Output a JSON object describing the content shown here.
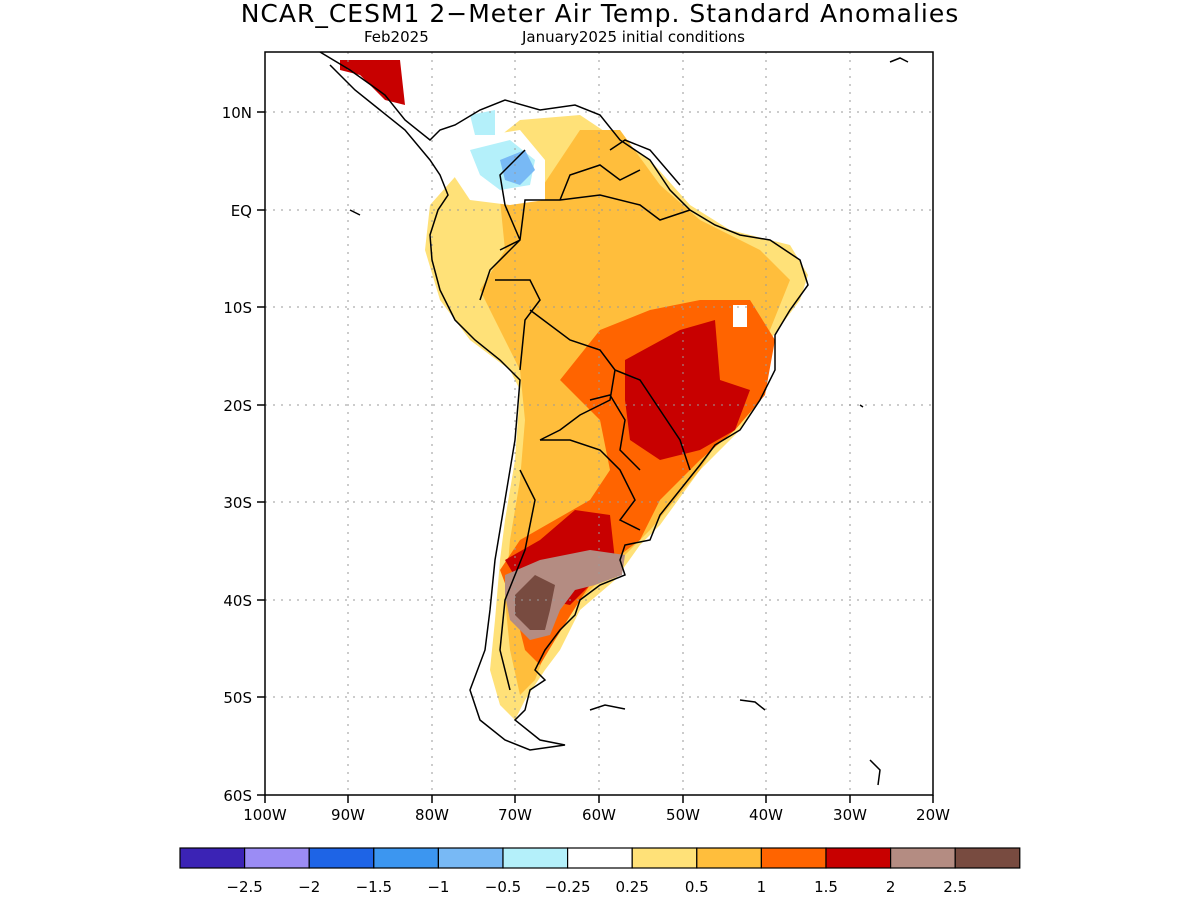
{
  "title": "NCAR_CESM1 2−Meter Air Temp. Standard Anomalies",
  "subtitle_left": "Feb2025",
  "subtitle_right": "January2025 initial conditions",
  "lat_labels": [
    "10N",
    "EQ",
    "10S",
    "20S",
    "30S",
    "40S",
    "50S",
    "60S"
  ],
  "lon_labels": [
    "100W",
    "90W",
    "80W",
    "70W",
    "60W",
    "50W",
    "40W",
    "30W",
    "20W"
  ],
  "colorbar": {
    "colors": [
      "#3b23b5",
      "#9b8cf5",
      "#1e64e6",
      "#3c96f0",
      "#78b9f5",
      "#b4f0fa",
      "#ffffff",
      "#ffe178",
      "#ffbe3c",
      "#ff6400",
      "#c80000",
      "#b48c82",
      "#784b40"
    ],
    "labels": [
      "−2.5",
      "−2",
      "−1.5",
      "−1",
      "−0.5",
      "−0.25",
      "0.25",
      "0.5",
      "1",
      "1.5",
      "2",
      "2.5"
    ]
  },
  "map": {
    "lat_range": [
      "60S",
      "5N"
    ],
    "lon_range": [
      "100W",
      "20W"
    ],
    "gridlines": true
  }
}
